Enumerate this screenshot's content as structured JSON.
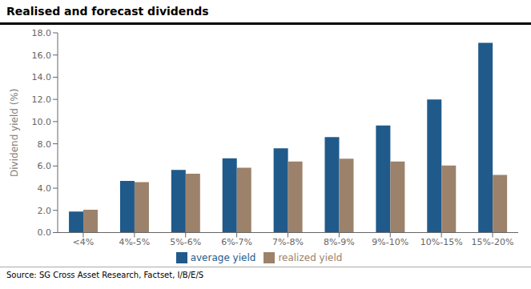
{
  "chart_data": {
    "type": "bar",
    "title": "Realised and forecast dividends",
    "ylabel": "Dividend yield (%)",
    "annotations": [
      "Source: SG Cross Asset Research, Factset, I/B/E/S"
    ],
    "categories": [
      "<4%",
      "4%-5%",
      "5%-6%",
      "6%-7%",
      "7%-8%",
      "8%-9%",
      "9%-10%",
      "10%-15%",
      "15%-20%"
    ],
    "series": [
      {
        "name": "average yield",
        "color": "#1F5A8B",
        "values": [
          1.9,
          4.65,
          5.65,
          6.7,
          7.6,
          8.6,
          9.65,
          12.0,
          17.1
        ]
      },
      {
        "name": "realized yield",
        "color": "#9C826A",
        "values": [
          2.05,
          4.55,
          5.3,
          5.85,
          6.4,
          6.65,
          6.4,
          6.05,
          5.2
        ]
      }
    ],
    "ylim": [
      0,
      18.0
    ],
    "yticks": [
      {
        "value": 0,
        "label": "0.0"
      },
      {
        "value": 2,
        "label": "2.0"
      },
      {
        "value": 4,
        "label": "4.0"
      },
      {
        "value": 6,
        "label": "6.0"
      },
      {
        "value": 8,
        "label": "8.0"
      },
      {
        "value": 10,
        "label": "10.0"
      },
      {
        "value": 12,
        "label": "12.0"
      },
      {
        "value": 14,
        "label": "14.0"
      },
      {
        "value": 16,
        "label": "16.0"
      },
      {
        "value": 18,
        "label": "18.0"
      }
    ],
    "grid": false,
    "legend": "bottom"
  }
}
